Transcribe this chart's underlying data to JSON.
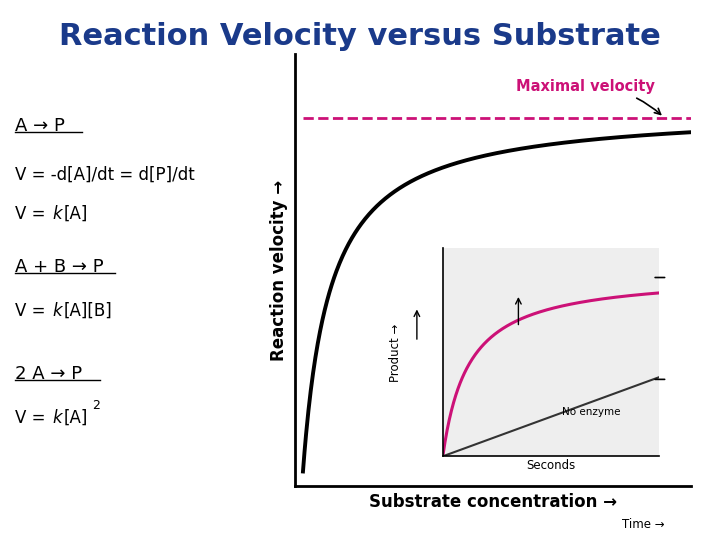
{
  "title": "Reaction Velocity versus Substrate",
  "title_color": "#1a3a8a",
  "title_fontsize": 22,
  "background_color": "#ffffff",
  "xlabel": "Substrate concentration →",
  "ylabel": "Reaction velocity →",
  "ylabel_fontsize": 12,
  "xlabel_fontsize": 12,
  "main_curve_color": "#000000",
  "dashed_line_color": "#cc1177",
  "maximal_velocity_label": "Maximal velocity",
  "maximal_velocity_color": "#cc1177",
  "inset_curve_color": "#cc1177",
  "inset_line_color": "#333333",
  "inset_xlabel": "Seconds",
  "inset_ylabel": "Product →",
  "inset_no_enzyme_label": "No enzyme",
  "time_label": "Time →"
}
